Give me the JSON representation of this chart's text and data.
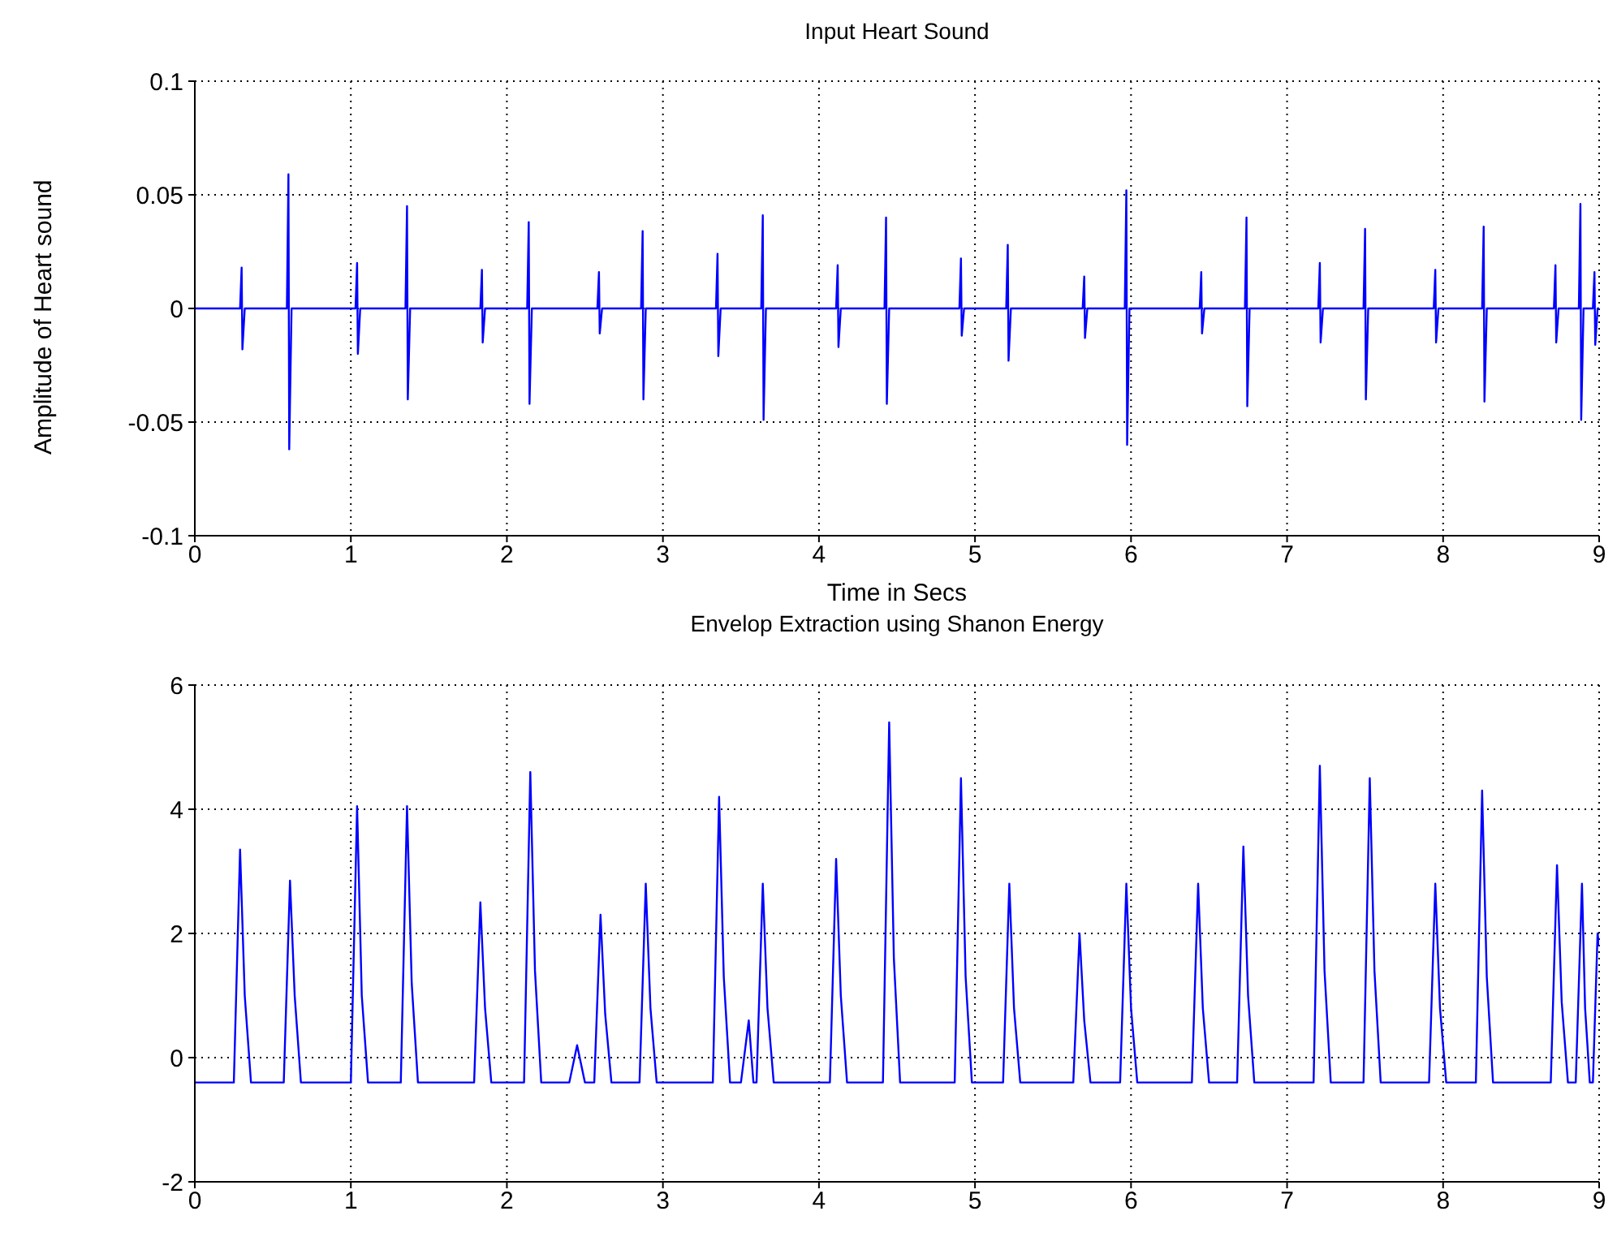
{
  "chart_data": [
    {
      "type": "line",
      "title": "Input Heart Sound",
      "xlabel": "Time in Secs",
      "ylabel": "Amplitude of Heart sound",
      "xlim": [
        0,
        9
      ],
      "xticks": [
        0,
        1,
        2,
        3,
        4,
        5,
        6,
        7,
        8,
        9
      ],
      "ylim": [
        -0.1,
        0.1
      ],
      "yticks": [
        -0.1,
        -0.05,
        0,
        0.05,
        0.1
      ],
      "grid": true,
      "series": [
        {
          "color": "#0000ff",
          "x": [
            0,
            0.29,
            0.3,
            0.305,
            0.32,
            0.59,
            0.6,
            0.605,
            0.62,
            1.03,
            1.04,
            1.045,
            1.06,
            1.35,
            1.36,
            1.365,
            1.38,
            1.83,
            1.84,
            1.845,
            1.86,
            2.13,
            2.14,
            2.145,
            2.16,
            2.58,
            2.59,
            2.595,
            2.61,
            2.86,
            2.87,
            2.875,
            2.89,
            3.34,
            3.35,
            3.355,
            3.37,
            3.63,
            3.64,
            3.645,
            3.66,
            4.11,
            4.12,
            4.125,
            4.14,
            4.42,
            4.43,
            4.435,
            4.45,
            4.9,
            4.91,
            4.915,
            4.93,
            5.2,
            5.21,
            5.215,
            5.23,
            5.69,
            5.7,
            5.705,
            5.72,
            5.96,
            5.97,
            5.975,
            5.99,
            6.44,
            6.45,
            6.455,
            6.47,
            6.73,
            6.74,
            6.745,
            6.76,
            7.2,
            7.21,
            7.215,
            7.23,
            7.49,
            7.5,
            7.505,
            7.52,
            7.94,
            7.95,
            7.955,
            7.97,
            8.25,
            8.26,
            8.265,
            8.28,
            8.71,
            8.72,
            8.725,
            8.74,
            8.87,
            8.88,
            8.885,
            8.9,
            8.96,
            8.97,
            8.975,
            8.99,
            9
          ],
          "values": [
            0,
            0,
            0.018,
            -0.018,
            0,
            0,
            0.059,
            -0.062,
            0,
            0,
            0.02,
            -0.02,
            0,
            0,
            0.045,
            -0.04,
            0,
            0,
            0.017,
            -0.015,
            0,
            0,
            0.038,
            -0.042,
            0,
            0,
            0.016,
            -0.011,
            0,
            0,
            0.034,
            -0.04,
            0,
            0,
            0.024,
            -0.021,
            0,
            0,
            0.041,
            -0.049,
            0,
            0,
            0.019,
            -0.017,
            0,
            0,
            0.04,
            -0.042,
            0,
            0,
            0.022,
            -0.012,
            0,
            0,
            0.028,
            -0.023,
            0,
            0,
            0.014,
            -0.013,
            0,
            0,
            0.052,
            -0.06,
            0,
            0,
            0.016,
            -0.011,
            0,
            0,
            0.04,
            -0.043,
            0,
            0,
            0.02,
            -0.015,
            0,
            0,
            0.035,
            -0.04,
            0,
            0,
            0.017,
            -0.015,
            0,
            0,
            0.036,
            -0.041,
            0,
            0,
            0.019,
            -0.015,
            0,
            0,
            0.046,
            -0.049,
            0,
            0,
            0.016,
            -0.016,
            0,
            0
          ]
        }
      ]
    },
    {
      "type": "line",
      "title": "Envelop Extraction using Shanon Energy",
      "xlim": [
        0,
        9
      ],
      "xticks": [
        0,
        1,
        2,
        3,
        4,
        5,
        6,
        7,
        8,
        9
      ],
      "ylim": [
        -2,
        6
      ],
      "yticks": [
        -2,
        0,
        2,
        4,
        6
      ],
      "grid": true,
      "series": [
        {
          "color": "#0000ff",
          "x": [
            0,
            0.25,
            0.29,
            0.32,
            0.36,
            0.57,
            0.61,
            0.64,
            0.68,
            1,
            1.04,
            1.07,
            1.11,
            1.32,
            1.36,
            1.39,
            1.43,
            1.79,
            1.83,
            1.86,
            1.9,
            2.11,
            2.15,
            2.18,
            2.22,
            2.4,
            2.45,
            2.5,
            2.56,
            2.6,
            2.63,
            2.67,
            2.85,
            2.89,
            2.92,
            2.96,
            3.32,
            3.36,
            3.39,
            3.43,
            3.5,
            3.55,
            3.58,
            3.6,
            3.64,
            3.67,
            3.71,
            4.07,
            4.11,
            4.14,
            4.18,
            4.41,
            4.45,
            4.48,
            4.52,
            4.87,
            4.91,
            4.94,
            4.98,
            5.18,
            5.22,
            5.25,
            5.29,
            5.63,
            5.67,
            5.7,
            5.74,
            5.93,
            5.97,
            6,
            6.04,
            6.39,
            6.43,
            6.46,
            6.5,
            6.68,
            6.72,
            6.75,
            6.79,
            7.17,
            7.21,
            7.24,
            7.28,
            7.49,
            7.53,
            7.56,
            7.6,
            7.91,
            7.95,
            7.98,
            8.02,
            8.21,
            8.25,
            8.28,
            8.32,
            8.69,
            8.73,
            8.76,
            8.8,
            8.85,
            8.89,
            8.91,
            8.94,
            8.96,
            8.99,
            9
          ],
          "values": [
            -0.4,
            -0.4,
            3.35,
            1,
            -0.4,
            -0.4,
            2.85,
            1,
            -0.4,
            -0.4,
            4.05,
            1,
            -0.4,
            -0.4,
            4.05,
            1.2,
            -0.4,
            -0.4,
            2.5,
            0.8,
            -0.4,
            -0.4,
            4.6,
            1.4,
            -0.4,
            -0.4,
            0.2,
            -0.4,
            -0.4,
            2.3,
            0.7,
            -0.4,
            -0.4,
            2.8,
            0.8,
            -0.4,
            -0.4,
            4.2,
            1.3,
            -0.4,
            -0.4,
            0.6,
            -0.4,
            -0.4,
            2.8,
            0.8,
            -0.4,
            -0.4,
            3.2,
            1,
            -0.4,
            -0.4,
            5.4,
            1.6,
            -0.4,
            -0.4,
            4.5,
            1.3,
            -0.4,
            -0.4,
            2.8,
            0.8,
            -0.4,
            -0.4,
            2,
            0.6,
            -0.4,
            -0.4,
            2.8,
            0.8,
            -0.4,
            -0.4,
            2.8,
            0.8,
            -0.4,
            -0.4,
            3.4,
            1,
            -0.4,
            -0.4,
            4.7,
            1.4,
            -0.4,
            -0.4,
            4.5,
            1.4,
            -0.4,
            -0.4,
            2.8,
            0.8,
            -0.4,
            -0.4,
            4.3,
            1.3,
            -0.4,
            -0.4,
            3.1,
            0.9,
            -0.4,
            -0.4,
            2.8,
            0.8,
            -0.4,
            -0.4,
            2,
            1.8
          ]
        }
      ]
    }
  ]
}
